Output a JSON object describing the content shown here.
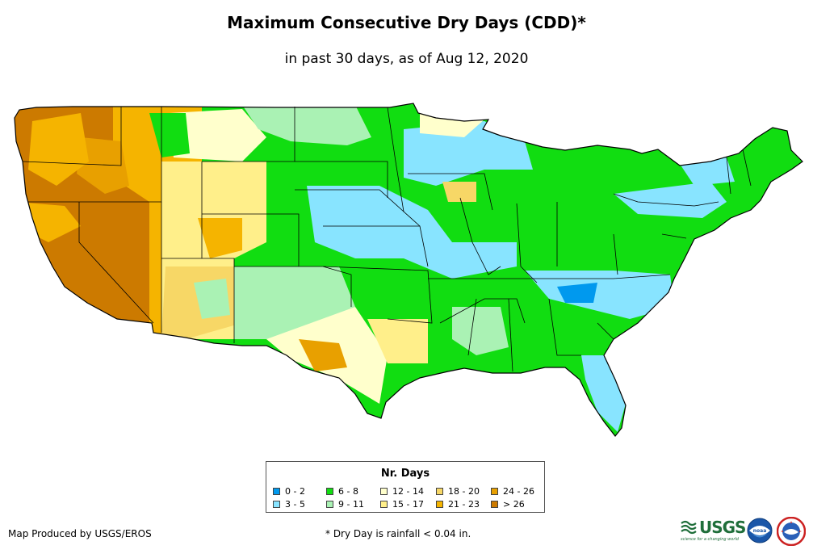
{
  "title": "Maximum Consecutive Dry Days (CDD)*",
  "subtitle": "in past 30 days, as of Aug 12, 2020",
  "legend": {
    "title": "Nr. Days",
    "items": [
      {
        "label": "0 - 2",
        "color": "#0099ee"
      },
      {
        "label": "3 - 5",
        "color": "#88e4ff"
      },
      {
        "label": "6 - 8",
        "color": "#11dd11"
      },
      {
        "label": "9 - 11",
        "color": "#aaf2b4"
      },
      {
        "label": "12 - 14",
        "color": "#ffffcc"
      },
      {
        "label": "15 - 17",
        "color": "#ffef8a"
      },
      {
        "label": "18 - 20",
        "color": "#f7d766"
      },
      {
        "label": "21 - 23",
        "color": "#f5b400"
      },
      {
        "label": "24 - 26",
        "color": "#e8a000"
      },
      {
        "label": "> 26",
        "color": "#cc7a00"
      }
    ]
  },
  "credit": "Map Produced by USGS/EROS",
  "footnote": "* Dry Day is rainfall < 0.04 in.",
  "logos": {
    "usgs_word": "USGS",
    "usgs_tagline": "science for a changing world",
    "noaa": "noaa"
  }
}
